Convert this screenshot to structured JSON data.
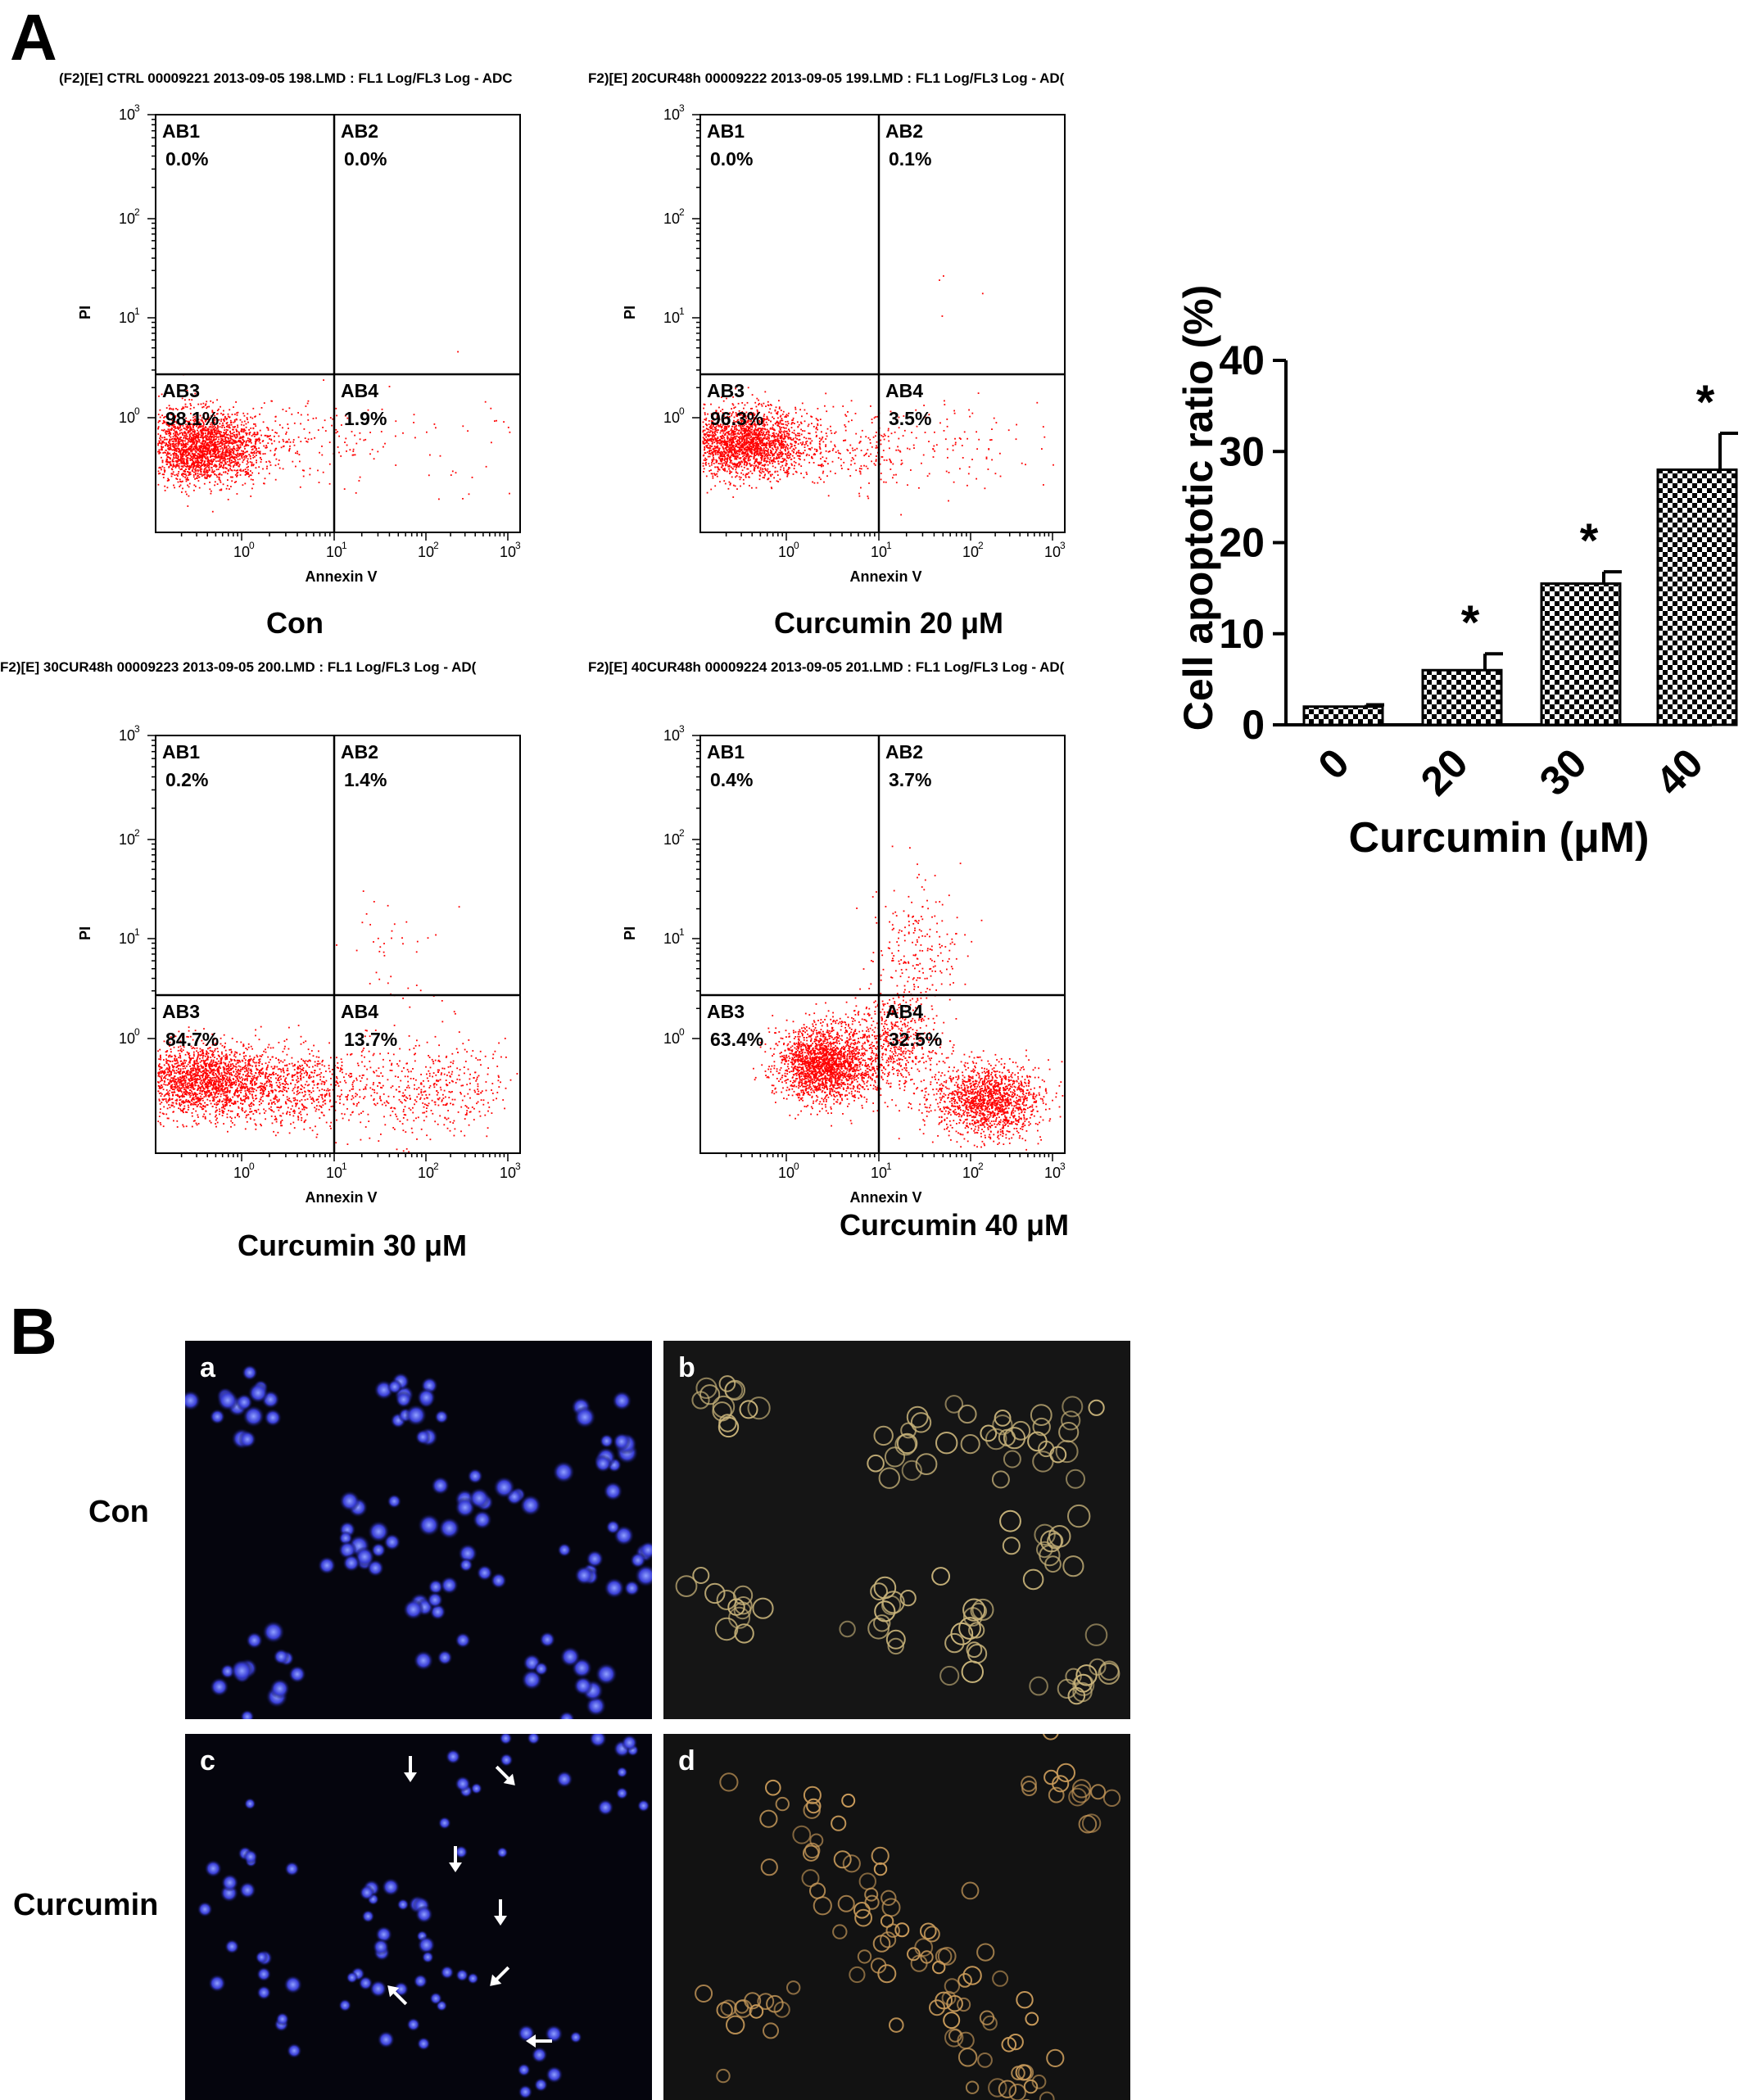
{
  "panel_labels": {
    "a": "A",
    "b": "B"
  },
  "colors": {
    "dots": "#ff0000",
    "bar_check_dark": "#000000",
    "bar_check_light": "#ffffff",
    "nuclei": "#3a3fd8",
    "bf_cells": "#c8b37a"
  },
  "flow_plots": [
    {
      "header": "(F2)[E] CTRL 00009221 2013-09-05 198.LMD : FL1 Log/FL3 Log - ADC",
      "caption": "Con",
      "quadrants": {
        "AB1": "0.0%",
        "AB2": "0.0%",
        "AB3": "98.1%",
        "AB4": "1.9%"
      }
    },
    {
      "header": "F2)[E] 20CUR48h 00009222 2013-09-05 199.LMD : FL1 Log/FL3 Log - AD(",
      "caption": "Curcumin 20 μM",
      "quadrants": {
        "AB1": "0.0%",
        "AB2": "0.1%",
        "AB3": "96.3%",
        "AB4": "3.5%"
      }
    },
    {
      "header": "F2)[E] 30CUR48h 00009223 2013-09-05 200.LMD : FL1 Log/FL3 Log - AD(",
      "caption": "Curcumin 30 μM",
      "quadrants": {
        "AB1": "0.2%",
        "AB2": "1.4%",
        "AB3": "84.7%",
        "AB4": "13.7%"
      }
    },
    {
      "header": "F2)[E] 40CUR48h 00009224 2013-09-05 201.LMD : FL1 Log/FL3 Log - AD(",
      "caption": "Curcumin 40 μM",
      "quadrants": {
        "AB1": "0.4%",
        "AB2": "3.7%",
        "AB3": "63.4%",
        "AB4": "32.5%"
      }
    }
  ],
  "flow_axes": {
    "xlabel": "Annexin V",
    "ylabel": "PI",
    "xticks": [
      "10",
      "10",
      "10",
      "10"
    ],
    "xexp": [
      "0",
      "1",
      "2",
      "3"
    ],
    "yticks": [
      "10",
      "10",
      "10",
      "10"
    ],
    "yexp": [
      "3",
      "2",
      "1",
      "0"
    ]
  },
  "chart_data": [
    {
      "type": "scatter",
      "xlabel": "Annexin V",
      "ylabel": "PI",
      "xscale": "log",
      "yscale": "log",
      "xlim": [
        0.1,
        1000
      ],
      "ylim": [
        0.1,
        1000
      ],
      "quadrant_lines": {
        "x": 10,
        "y": 3
      },
      "caption": "Con",
      "quadrant_percent": {
        "AB1": 0.0,
        "AB2": 0.0,
        "AB3": 98.1,
        "AB4": 1.9
      }
    },
    {
      "type": "scatter",
      "xlabel": "Annexin V",
      "ylabel": "PI",
      "xscale": "log",
      "yscale": "log",
      "xlim": [
        0.1,
        1000
      ],
      "ylim": [
        0.1,
        1000
      ],
      "quadrant_lines": {
        "x": 10,
        "y": 3
      },
      "caption": "Curcumin 20 μM",
      "quadrant_percent": {
        "AB1": 0.0,
        "AB2": 0.1,
        "AB3": 96.3,
        "AB4": 3.5
      }
    },
    {
      "type": "scatter",
      "xlabel": "Annexin V",
      "ylabel": "PI",
      "xscale": "log",
      "yscale": "log",
      "xlim": [
        0.1,
        1000
      ],
      "ylim": [
        0.1,
        1000
      ],
      "quadrant_lines": {
        "x": 10,
        "y": 3
      },
      "caption": "Curcumin 30 μM",
      "quadrant_percent": {
        "AB1": 0.2,
        "AB2": 1.4,
        "AB3": 84.7,
        "AB4": 13.7
      }
    },
    {
      "type": "scatter",
      "xlabel": "Annexin V",
      "ylabel": "PI",
      "xscale": "log",
      "yscale": "log",
      "xlim": [
        0.1,
        1000
      ],
      "ylim": [
        0.1,
        1000
      ],
      "quadrant_lines": {
        "x": 10,
        "y": 3
      },
      "caption": "Curcumin 40 μM",
      "quadrant_percent": {
        "AB1": 0.4,
        "AB2": 3.7,
        "AB3": 63.4,
        "AB4": 32.5
      }
    },
    {
      "type": "bar",
      "categories": [
        "0",
        "20",
        "30",
        "40"
      ],
      "values": [
        2,
        6,
        15.5,
        28
      ],
      "errors": [
        0.2,
        1.8,
        1.3,
        4
      ],
      "significance": [
        "",
        "*",
        "*",
        "*"
      ],
      "xlabel": "Curcumin (μM)",
      "ylabel": "Cell apoptotic ratio (%)",
      "ylim": [
        0,
        40
      ],
      "yticks": [
        0,
        10,
        20,
        30,
        40
      ],
      "ytick_labels": [
        "0",
        "10",
        "20",
        "30",
        "40"
      ]
    }
  ],
  "micrographs": {
    "row_labels": [
      "Con",
      "Curcumin"
    ],
    "panels": [
      {
        "letter": "a",
        "kind": "hoechst"
      },
      {
        "letter": "b",
        "kind": "brightfield"
      },
      {
        "letter": "c",
        "kind": "hoechst"
      },
      {
        "letter": "d",
        "kind": "brightfield"
      }
    ]
  }
}
